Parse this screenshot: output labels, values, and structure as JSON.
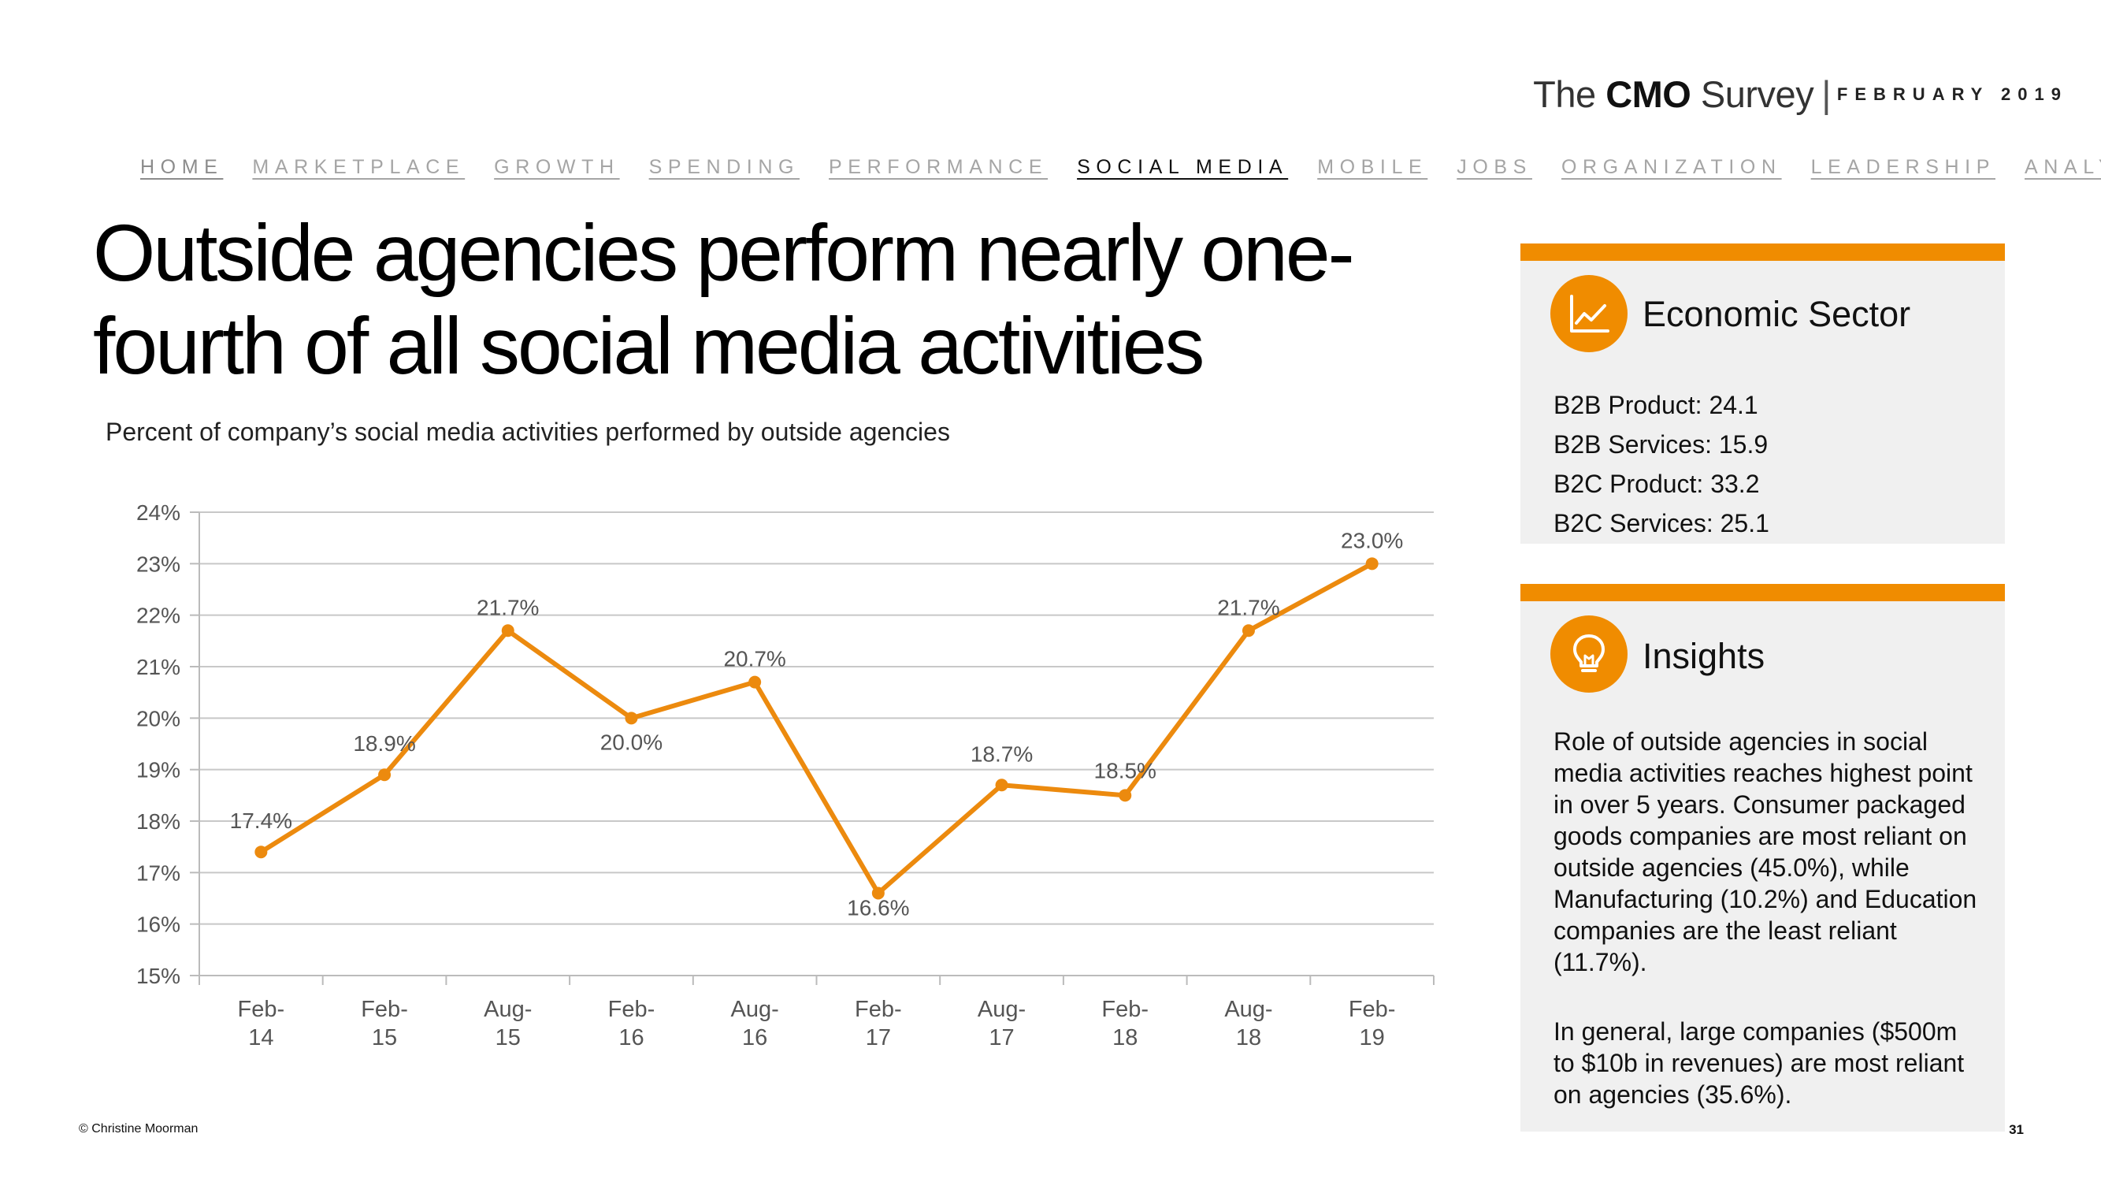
{
  "brand": {
    "the": "The",
    "cmo": "CMO",
    "survey": "Survey",
    "separator": "|",
    "date": "FEBRUARY 2019"
  },
  "nav": [
    "HOME",
    "MARKETPLACE",
    "GROWTH",
    "SPENDING",
    "PERFORMANCE",
    "SOCIAL MEDIA",
    "MOBILE",
    "JOBS",
    "ORGANIZATION",
    "LEADERSHIP",
    "ANALYTICS"
  ],
  "nav_active": "SOCIAL MEDIA",
  "title": "Outside agencies perform nearly one-fourth of all social media activities",
  "subtitle": "Percent of company’s social media activities performed by outside agencies",
  "chart_data": {
    "type": "line",
    "categories": [
      "Feb-14",
      "Feb-15",
      "Aug-15",
      "Feb-16",
      "Aug-16",
      "Feb-17",
      "Aug-17",
      "Feb-18",
      "Aug-18",
      "Feb-19"
    ],
    "values": [
      17.4,
      18.9,
      21.7,
      20.0,
      20.7,
      16.6,
      18.7,
      18.5,
      21.7,
      23.0
    ],
    "data_labels": [
      "17.4%",
      "18.9%",
      "21.7%",
      "20.0%",
      "20.7%",
      "16.6%",
      "18.7%",
      "18.5%",
      "21.7%",
      "23.0%"
    ],
    "y_ticks": [
      "15%",
      "16%",
      "17%",
      "18%",
      "19%",
      "20%",
      "21%",
      "22%",
      "23%",
      "24%"
    ],
    "ylim": [
      15,
      24
    ],
    "grid": true,
    "line_color": "#ec8a0e",
    "grid_color": "#c8c8c8"
  },
  "economic_sector": {
    "heading": "Economic Sector",
    "icon": "line-chart-icon",
    "items": [
      "B2B Product: 24.1",
      "B2B Services: 15.9",
      "B2C Product: 33.2",
      "B2C Services: 25.1"
    ]
  },
  "insights": {
    "heading": "Insights",
    "icon": "lightbulb-icon",
    "paragraphs": [
      "Role of outside agencies in social media activities reaches highest point in over 5 years. Consumer packaged goods companies are most reliant on outside agencies (45.0%), while Manufacturing (10.2%) and Education companies are the least reliant (11.7%).",
      "In general, large companies ($500m to $10b in revenues) are most reliant on agencies (35.6%)."
    ]
  },
  "accent_color": "#f08c00",
  "footer": {
    "copyright": "© Christine Moorman",
    "page_number": "31"
  }
}
